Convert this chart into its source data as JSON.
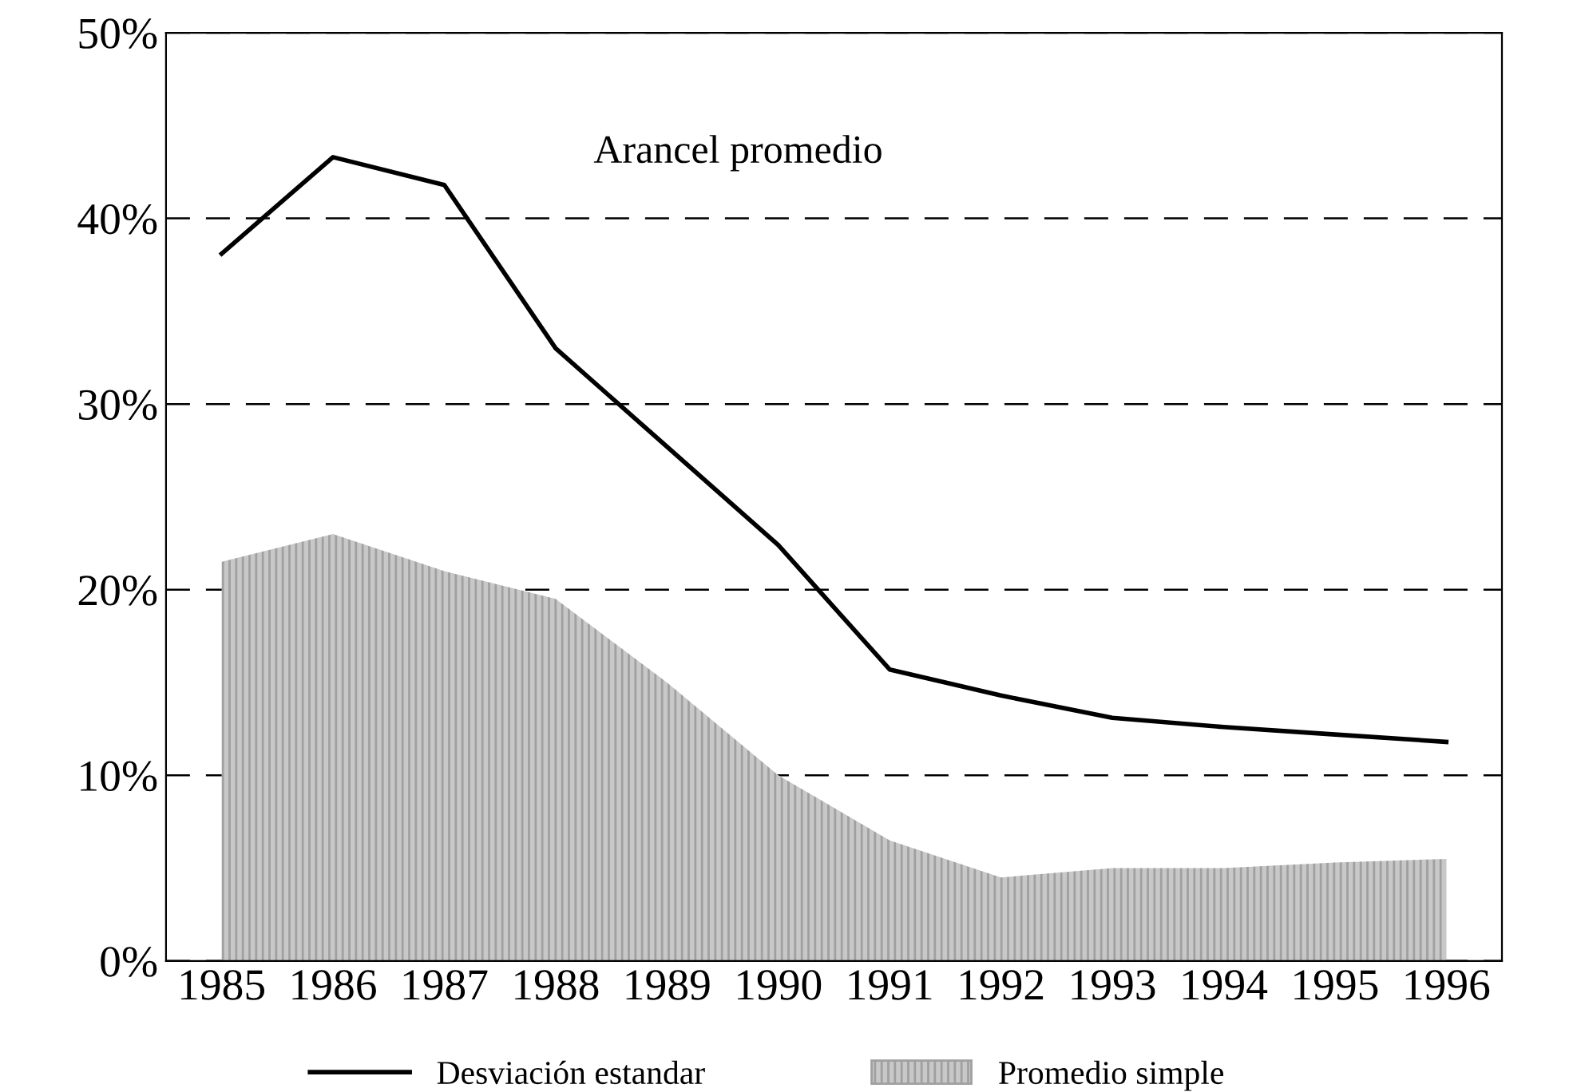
{
  "chart_data": {
    "type": "line",
    "categories": [
      "1985",
      "1986",
      "1987",
      "1988",
      "1989",
      "1990",
      "1991",
      "1992",
      "1993",
      "1994",
      "1995",
      "1996"
    ],
    "series": [
      {
        "name": "Desviación estandar",
        "color": "#000000",
        "values": [
          38.1,
          43.3,
          41.8,
          33.0,
          27.7,
          22.4,
          15.7,
          14.3,
          13.1,
          12.6,
          12.2,
          11.8
        ]
      },
      {
        "name": "Promedio simple",
        "type": "area",
        "color": "#c8c8c8",
        "values": [
          21.5,
          23.0,
          21.0,
          19.5,
          15.0,
          10.0,
          6.5,
          4.5,
          5.0,
          5.0,
          5.3,
          5.5
        ]
      }
    ],
    "annotations": [
      "Arancel promedio"
    ],
    "ylim": [
      0,
      50
    ],
    "yticks": [
      {
        "value": 0,
        "label": "0%"
      },
      {
        "value": 10,
        "label": "10%"
      },
      {
        "value": 20,
        "label": "20%"
      },
      {
        "value": 30,
        "label": "30%"
      },
      {
        "value": 40,
        "label": "40%"
      },
      {
        "value": 50,
        "label": "50%"
      }
    ],
    "grid": "y",
    "legend": "bottom",
    "marker": "none",
    "line_style": "solid"
  }
}
